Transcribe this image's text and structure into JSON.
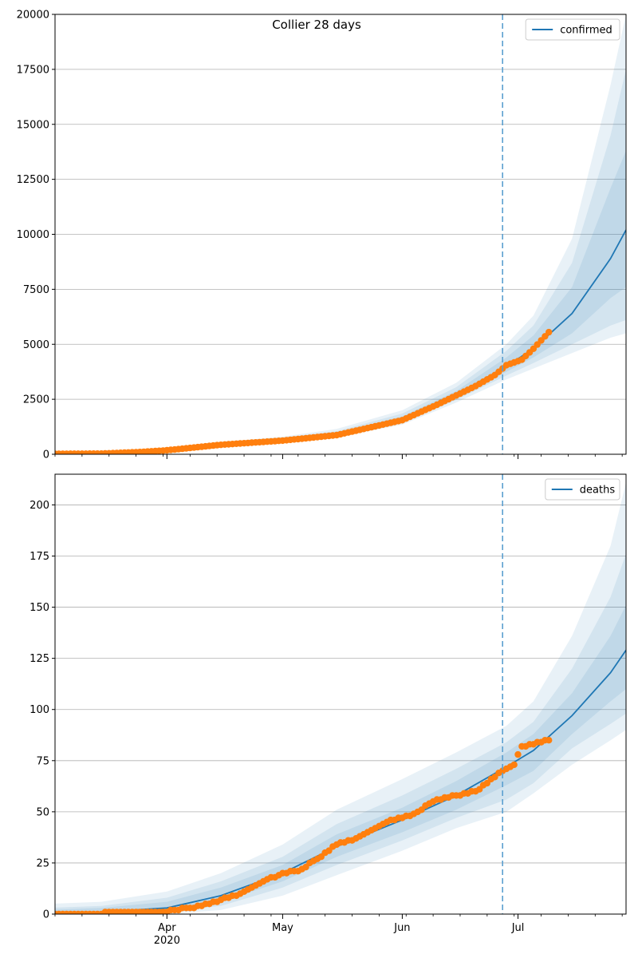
{
  "figure": {
    "title": "Collier 28 days",
    "colors": {
      "model_line": "#1f77b4",
      "observed": "#ff7f0e",
      "band": "#c5d9ed",
      "cutoff_line": "#5b9fd0",
      "grid": "#b0b0b0"
    }
  },
  "chart_data": [
    {
      "type": "line",
      "series": [
        {
          "name": "confirmed",
          "x": [
            "2020-03-01",
            "2020-03-15",
            "2020-04-01",
            "2020-04-15",
            "2020-05-01",
            "2020-05-15",
            "2020-06-01",
            "2020-06-15",
            "2020-06-28",
            "2020-07-05",
            "2020-07-15",
            "2020-07-25",
            "2020-07-29"
          ],
          "median": [
            0,
            40,
            200,
            450,
            650,
            900,
            1600,
            2700,
            4000,
            4800,
            6400,
            8900,
            10200
          ],
          "bands": [
            {
              "lower": [
                0,
                20,
                150,
                350,
                530,
                750,
                1350,
                2350,
                3400,
                3900,
                4600,
                5300,
                5500
              ],
              "upper": [
                80,
                80,
                260,
                560,
                800,
                1150,
                2000,
                3250,
                5000,
                6300,
                9800,
                16800,
                20000
              ]
            },
            {
              "lower": [
                0,
                25,
                165,
                380,
                560,
                790,
                1430,
                2470,
                3580,
                4150,
                5000,
                5850,
                6100
              ],
              "upper": [
                65,
                65,
                240,
                520,
                750,
                1050,
                1850,
                3050,
                4700,
                5850,
                8700,
                14500,
                17500
              ]
            },
            {
              "lower": [
                0,
                30,
                180,
                410,
                600,
                840,
                1510,
                2570,
                3750,
                4400,
                5500,
                7100,
                7600
              ],
              "upper": [
                55,
                55,
                225,
                490,
                700,
                980,
                1720,
                2880,
                4400,
                5400,
                7600,
                12100,
                13800
              ]
            }
          ]
        }
      ],
      "observed": {
        "x": [
          "2020-03-01",
          "2020-03-15",
          "2020-03-25",
          "2020-04-01",
          "2020-04-15",
          "2020-05-01",
          "2020-05-15",
          "2020-06-01",
          "2020-06-10",
          "2020-06-20",
          "2020-06-25",
          "2020-06-28",
          "2020-07-02",
          "2020-07-05",
          "2020-07-09"
        ],
        "y": [
          20,
          30,
          100,
          180,
          430,
          620,
          870,
          1550,
          2250,
          3100,
          3600,
          4050,
          4300,
          4800,
          5550
        ]
      },
      "cutoff": "2020-06-27",
      "ylim": [
        0,
        20000
      ],
      "yticks": [
        0,
        2500,
        5000,
        7500,
        10000,
        12500,
        15000,
        17500,
        20000
      ],
      "xlim": [
        "2020-03-03",
        "2020-07-29"
      ],
      "legend": {
        "position": "top-right",
        "label": "confirmed"
      },
      "grid": "y"
    },
    {
      "type": "line",
      "series": [
        {
          "name": "deaths",
          "x": [
            "2020-03-01",
            "2020-03-15",
            "2020-04-01",
            "2020-04-15",
            "2020-05-01",
            "2020-05-15",
            "2020-06-01",
            "2020-06-15",
            "2020-06-28",
            "2020-07-05",
            "2020-07-15",
            "2020-07-25",
            "2020-07-29"
          ],
          "median": [
            0,
            1,
            3,
            9,
            20,
            33,
            46,
            58,
            72,
            80,
            97,
            118,
            129
          ],
          "bands": [
            {
              "lower": [
                0,
                0,
                0,
                2,
                9,
                19,
                31,
                42,
                50,
                59,
                73,
                85,
                90
              ],
              "upper": [
                5,
                6,
                11,
                20,
                34,
                51,
                66,
                79,
                92,
                104,
                136,
                180,
                211
              ]
            },
            {
              "lower": [
                0,
                0,
                1,
                4,
                13,
                24,
                36,
                47,
                56,
                64,
                81,
                93,
                98
              ],
              "upper": [
                3,
                4,
                8,
                16,
                28,
                44,
                58,
                71,
                84,
                94,
                120,
                155,
                176
              ]
            },
            {
              "lower": [
                0,
                0,
                2,
                6,
                16,
                28,
                40,
                51,
                63,
                70,
                88,
                104,
                110
              ],
              "upper": [
                2,
                3,
                6,
                13,
                24,
                39,
                52,
                65,
                79,
                88,
                108,
                136,
                151
              ]
            }
          ]
        }
      ],
      "observed": {
        "x": [
          "2020-03-01",
          "2020-03-31",
          "2020-04-10",
          "2020-04-20",
          "2020-04-25",
          "2020-05-01",
          "2020-05-05",
          "2020-05-10",
          "2020-05-15",
          "2020-05-20",
          "2020-05-28",
          "2020-06-03",
          "2020-06-10",
          "2020-06-20",
          "2020-06-27",
          "2020-06-30",
          "2020-07-02",
          "2020-07-09"
        ],
        "y": [
          0,
          1,
          4,
          10,
          15,
          20,
          21,
          27,
          34,
          37,
          45,
          48,
          56,
          60,
          70,
          73,
          82,
          85
        ]
      },
      "cutoff": "2020-06-27",
      "ylim": [
        0,
        215
      ],
      "yticks": [
        0,
        25,
        50,
        75,
        100,
        125,
        150,
        175,
        200
      ],
      "xlim": [
        "2020-03-03",
        "2020-07-29"
      ],
      "xticks": [
        {
          "date": "2020-04-01",
          "label": "Apr",
          "sublabel": "2020"
        },
        {
          "date": "2020-05-01",
          "label": "May",
          "sublabel": ""
        },
        {
          "date": "2020-06-01",
          "label": "Jun",
          "sublabel": ""
        },
        {
          "date": "2020-07-01",
          "label": "Jul",
          "sublabel": ""
        }
      ],
      "legend": {
        "position": "top-right",
        "label": "deaths"
      },
      "grid": "y"
    }
  ]
}
